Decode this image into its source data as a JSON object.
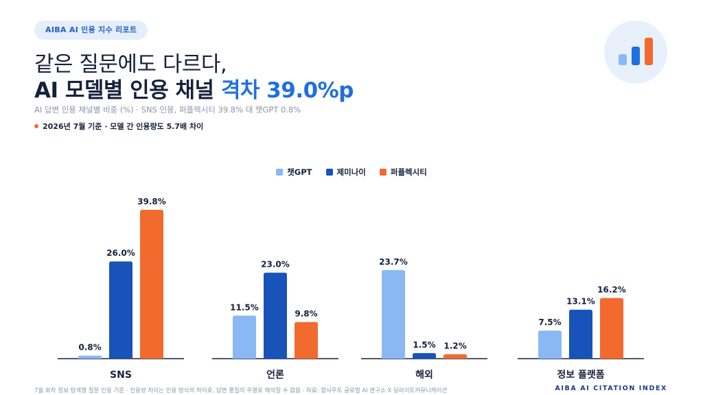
{
  "header": {
    "badge": "AIBA AI 인용 지수 리포트",
    "title_line1": "같은 질문에도 다르다,",
    "title_line2_main": "AI 모델별 인용 채널 ",
    "title_line2_accent": "격차 39.0%p",
    "subtitle": "AI 답변 인용 채널별 비중 (%) · SNS 인용, 퍼플렉시티 39.8% 대 챗GPT 0.8%",
    "note": "2026년 7월 기준 · 모델 간 인용량도 5.7배 차이"
  },
  "logo": {
    "icon": "bar-chart-icon",
    "bar_colors": [
      "#8ab8f5",
      "#1f6fe0",
      "#f26a2e"
    ]
  },
  "footer": {
    "left": "7월 회차 정보 탐색형 질문 인용 기준 · 인용량 차이는 인용 방식의 차이로, 답변 품질의 우열로 해석할 수 없음 · 자료: 함샤우트 글로벌 AI 연구소 X 딜라이트커뮤니케이션",
    "right": "AIBA AI CITATION INDEX"
  },
  "chart_data": {
    "type": "bar",
    "categories": [
      "SNS",
      "언론",
      "해외",
      "정보 플랫폼"
    ],
    "series": [
      {
        "name": "챗GPT",
        "color": "#8ab8f5",
        "values": [
          0.8,
          11.5,
          23.7,
          7.5
        ],
        "labels": [
          "0.8%",
          "11.5%",
          "23.7%",
          "7.5%"
        ]
      },
      {
        "name": "제미나이",
        "color": "#1753b8",
        "values": [
          26.0,
          23.0,
          1.5,
          13.1
        ],
        "labels": [
          "26.0%",
          "23.0%",
          "1.5%",
          "13.1%"
        ]
      },
      {
        "name": "퍼플렉시티",
        "color": "#f26a2e",
        "values": [
          39.8,
          9.8,
          1.2,
          16.2
        ],
        "labels": [
          "39.8%",
          "9.8%",
          "1.2%",
          "16.2%"
        ]
      }
    ],
    "ylim": [
      0,
      40
    ],
    "grid": false,
    "legend": "top-center",
    "xlabel": "",
    "ylabel": ""
  }
}
